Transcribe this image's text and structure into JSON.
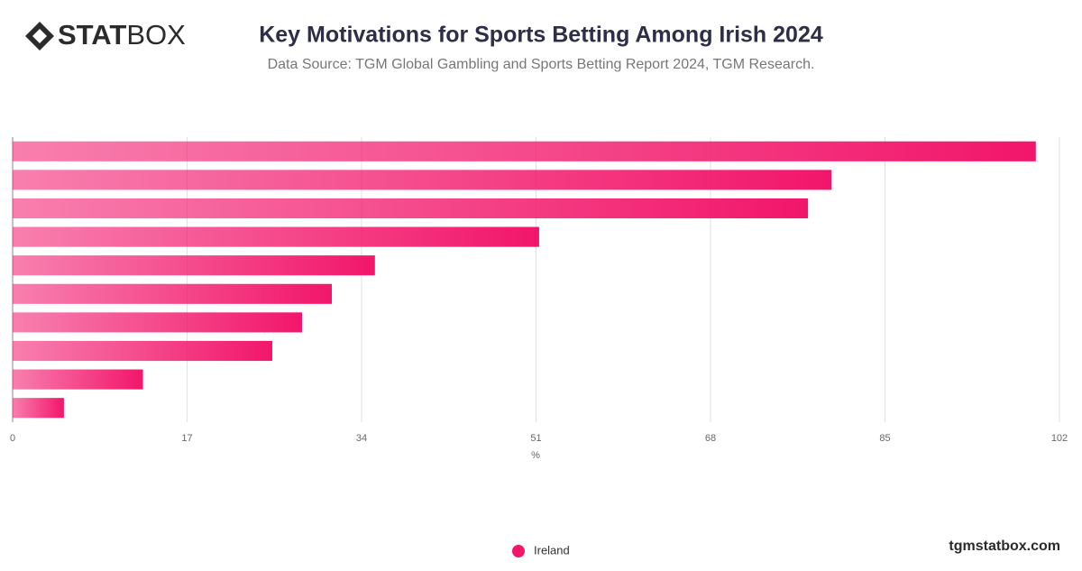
{
  "logo": {
    "bold": "STAT",
    "light": "BOX"
  },
  "footer": "tgmstatbox.com",
  "chart_data": {
    "type": "bar",
    "orientation": "horizontal",
    "title": "Key Motivations for Sports Betting Among Irish 2024",
    "subtitle": "Data Source: TGM Global Gambling and Sports Betting Report 2024, TGM Research.",
    "x_label": "%",
    "categories": [
      null,
      null,
      null,
      null,
      null,
      null,
      null,
      null,
      null,
      null
    ],
    "series": [
      {
        "name": "Ireland",
        "color": "#f2166b",
        "values": [
          99.7,
          79.8,
          77.5,
          51.3,
          35.3,
          31.1,
          28.2,
          25.3,
          12.7,
          5.0
        ]
      }
    ],
    "xlim": [
      0,
      102
    ],
    "xticks": [
      0,
      17,
      34,
      51,
      68,
      85,
      102
    ],
    "grid": true,
    "legend": "bottom"
  }
}
